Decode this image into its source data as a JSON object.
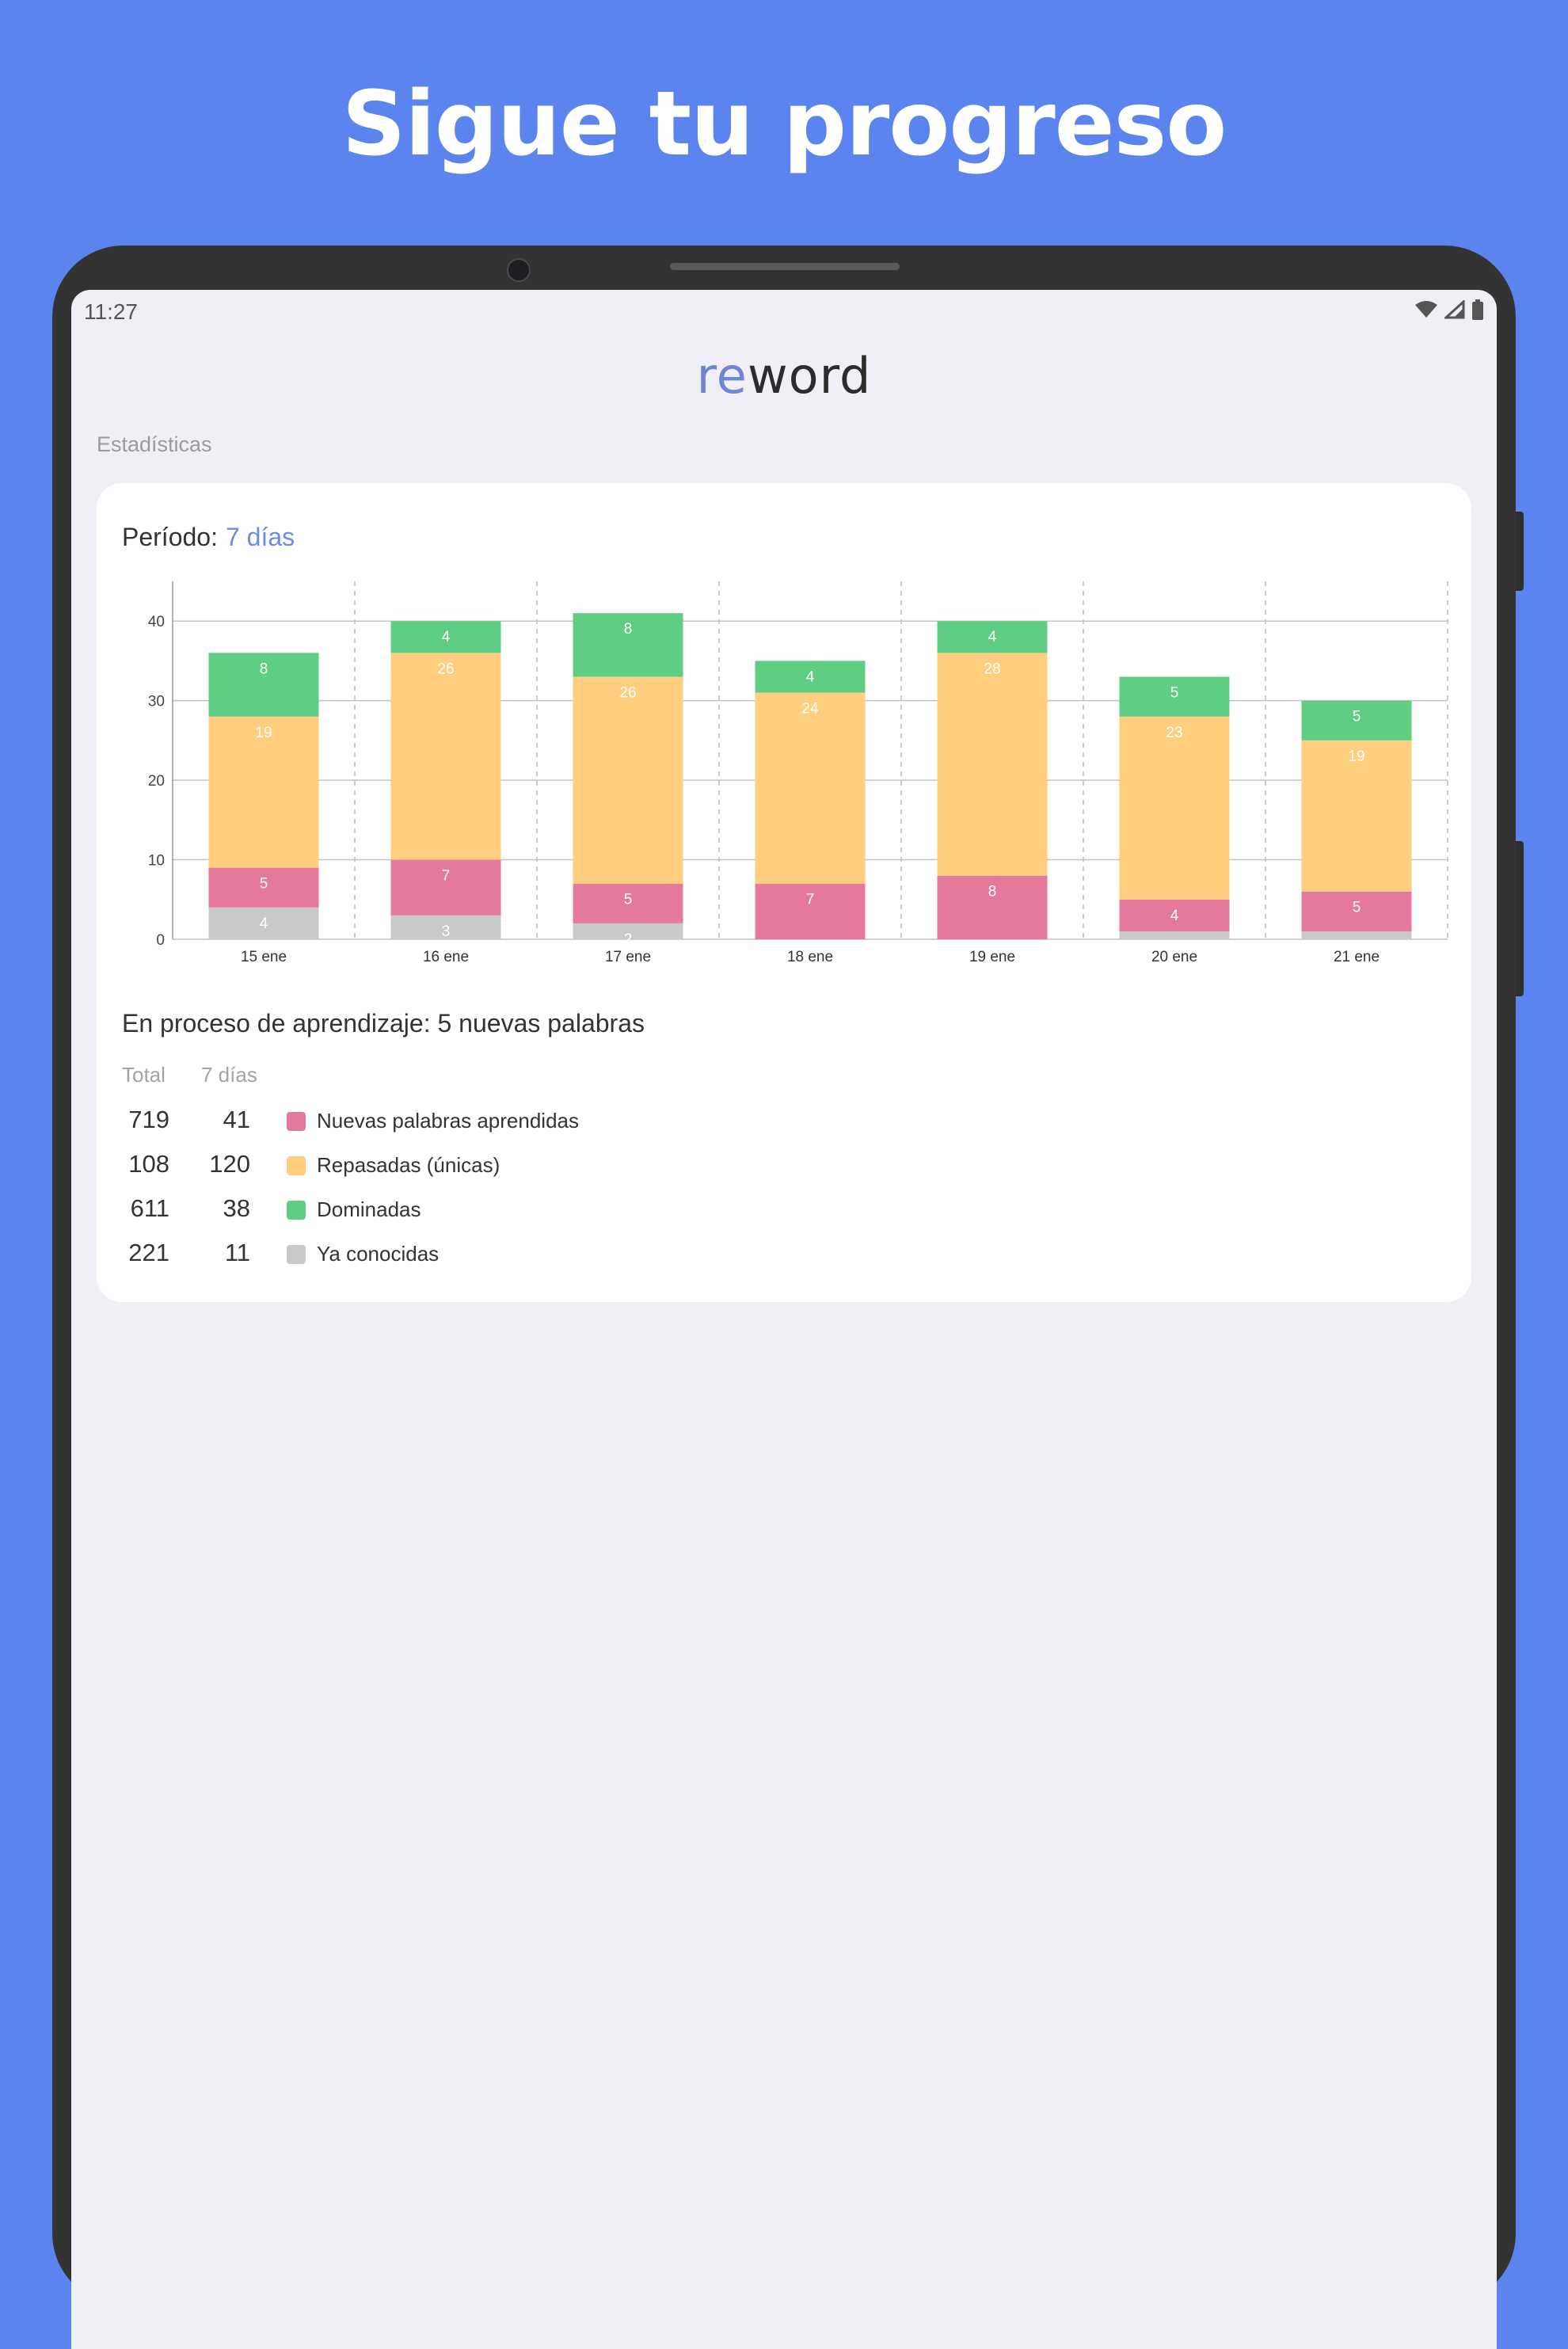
{
  "headline": "Sigue tu progreso",
  "status": {
    "time": "11:27",
    "icons": [
      "wifi-icon",
      "signal-icon",
      "battery-icon"
    ]
  },
  "app": {
    "logo_prefix": "re",
    "logo_suffix": "word",
    "section_label": "Estadísticas"
  },
  "card": {
    "period_label": "Período:",
    "period_value": "7 días",
    "learning_text": "En proceso de aprendizaje: 5 nuevas palabras",
    "stats_header": {
      "total": "Total",
      "week": "7 días"
    },
    "stats": [
      {
        "total": "719",
        "week": "41",
        "label": "Nuevas palabras aprendidas",
        "color": "#e5799b"
      },
      {
        "total": "108",
        "week": "120",
        "label": "Repasadas (únicas)",
        "color": "#ffcf7f"
      },
      {
        "total": "611",
        "week": "38",
        "label": "Dominadas",
        "color": "#5fce82"
      },
      {
        "total": "221",
        "week": "11",
        "label": "Ya conocidas",
        "color": "#c9c9c9"
      }
    ]
  },
  "chart_data": {
    "type": "bar",
    "stacked": true,
    "categories": [
      "15 ene",
      "16 ene",
      "17 ene",
      "18 ene",
      "19 ene",
      "20 ene",
      "21 ene"
    ],
    "ylim": [
      0,
      45
    ],
    "yticks": [
      0,
      10,
      20,
      30,
      40
    ],
    "grid": true,
    "series": [
      {
        "name": "Ya conocidas",
        "color": "#c9c9c9",
        "values": [
          4,
          3,
          2,
          0,
          0,
          1,
          1
        ]
      },
      {
        "name": "Nuevas palabras aprendidas",
        "color": "#e5799b",
        "values": [
          5,
          7,
          5,
          7,
          8,
          4,
          5
        ]
      },
      {
        "name": "Repasadas (únicas)",
        "color": "#ffcf7f",
        "values": [
          19,
          26,
          26,
          24,
          28,
          23,
          19
        ]
      },
      {
        "name": "Dominadas",
        "color": "#5fce82",
        "values": [
          8,
          4,
          8,
          4,
          4,
          5,
          5
        ]
      }
    ]
  }
}
